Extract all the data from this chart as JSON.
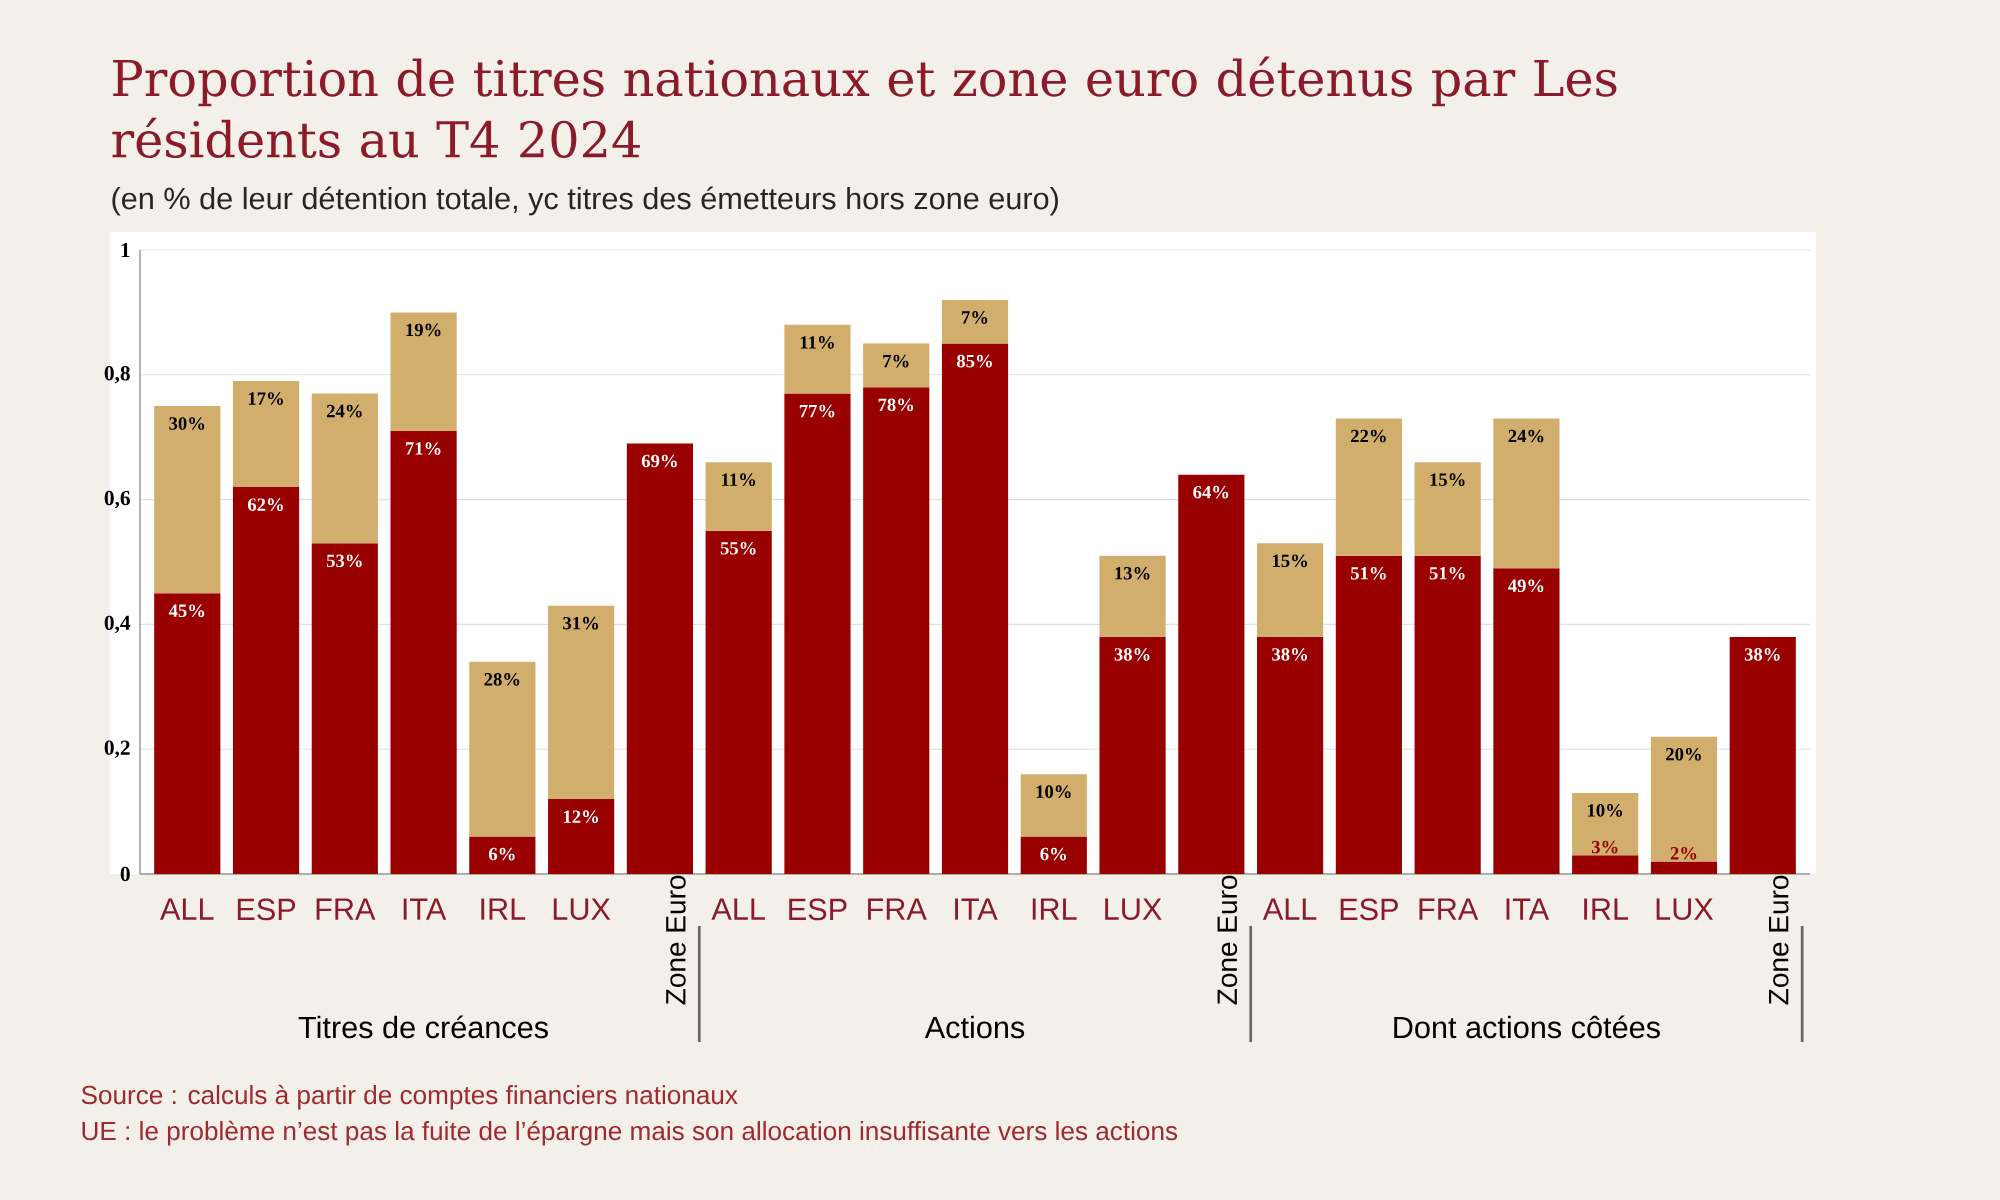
{
  "chart_data": {
    "type": "bar",
    "stacked": true,
    "title": "Proportion de titres nationaux et zone euro détenus par Les résidents au T4 2024",
    "subtitle": "(en % de leur détention totale, yc titres des émetteurs hors zone euro)",
    "categories": [
      "ALL",
      "ESP",
      "FRA",
      "ITA",
      "IRL",
      "LUX",
      "Zone Euro",
      "ALL",
      "ESP",
      "FRA",
      "ITA",
      "IRL",
      "LUX",
      "Zone Euro",
      "ALL",
      "ESP",
      "FRA",
      "ITA",
      "IRL",
      "LUX",
      "Zone Euro"
    ],
    "series": [
      {
        "color": "#990000",
        "values": [
          0.45,
          0.62,
          0.53,
          0.71,
          0.06,
          0.12,
          0.69,
          0.55,
          0.77,
          0.78,
          0.85,
          0.06,
          0.38,
          0.64,
          0.38,
          0.51,
          0.51,
          0.49,
          0.03,
          0.02,
          0.38
        ],
        "value_labels": [
          "45%",
          "62%",
          "53%",
          "71%",
          "6%",
          "12%",
          "69%",
          "55%",
          "77%",
          "78%",
          "85%",
          "6%",
          "38%",
          "64%",
          "38%",
          "51%",
          "51%",
          "49%",
          "3%",
          "2%",
          "38%"
        ]
      },
      {
        "color": "#d1ae6c",
        "values": [
          0.3,
          0.17,
          0.24,
          0.19,
          0.28,
          0.31,
          null,
          0.11,
          0.11,
          0.07,
          0.07,
          0.1,
          0.13,
          null,
          0.15,
          0.22,
          0.15,
          0.24,
          0.1,
          0.2,
          null
        ],
        "value_labels": [
          "30%",
          "17%",
          "24%",
          "19%",
          "28%",
          "31%",
          null,
          "11%",
          "11%",
          "7%",
          "7%",
          "10%",
          "13%",
          null,
          "15%",
          "22%",
          "15%",
          "24%",
          "10%",
          "20%",
          null
        ]
      }
    ],
    "ylim": [
      0,
      1
    ],
    "yticks": [
      0,
      {
        "value": 0.2,
        "label": "0,2"
      },
      {
        "value": 0.4,
        "label": "0,4"
      },
      {
        "value": 0.6,
        "label": "0,6"
      },
      {
        "value": 0.8,
        "label": "0,8"
      },
      1
    ],
    "grid": "y",
    "annotations": [
      "Titres de créances",
      "Actions",
      "Dont actions côtées",
      "Source : calculs à partir de comptes financiers nationaux",
      "UE : le problème n’est pas la fuite de l’épargne mais son allocation insuffisante vers les actions"
    ]
  }
}
